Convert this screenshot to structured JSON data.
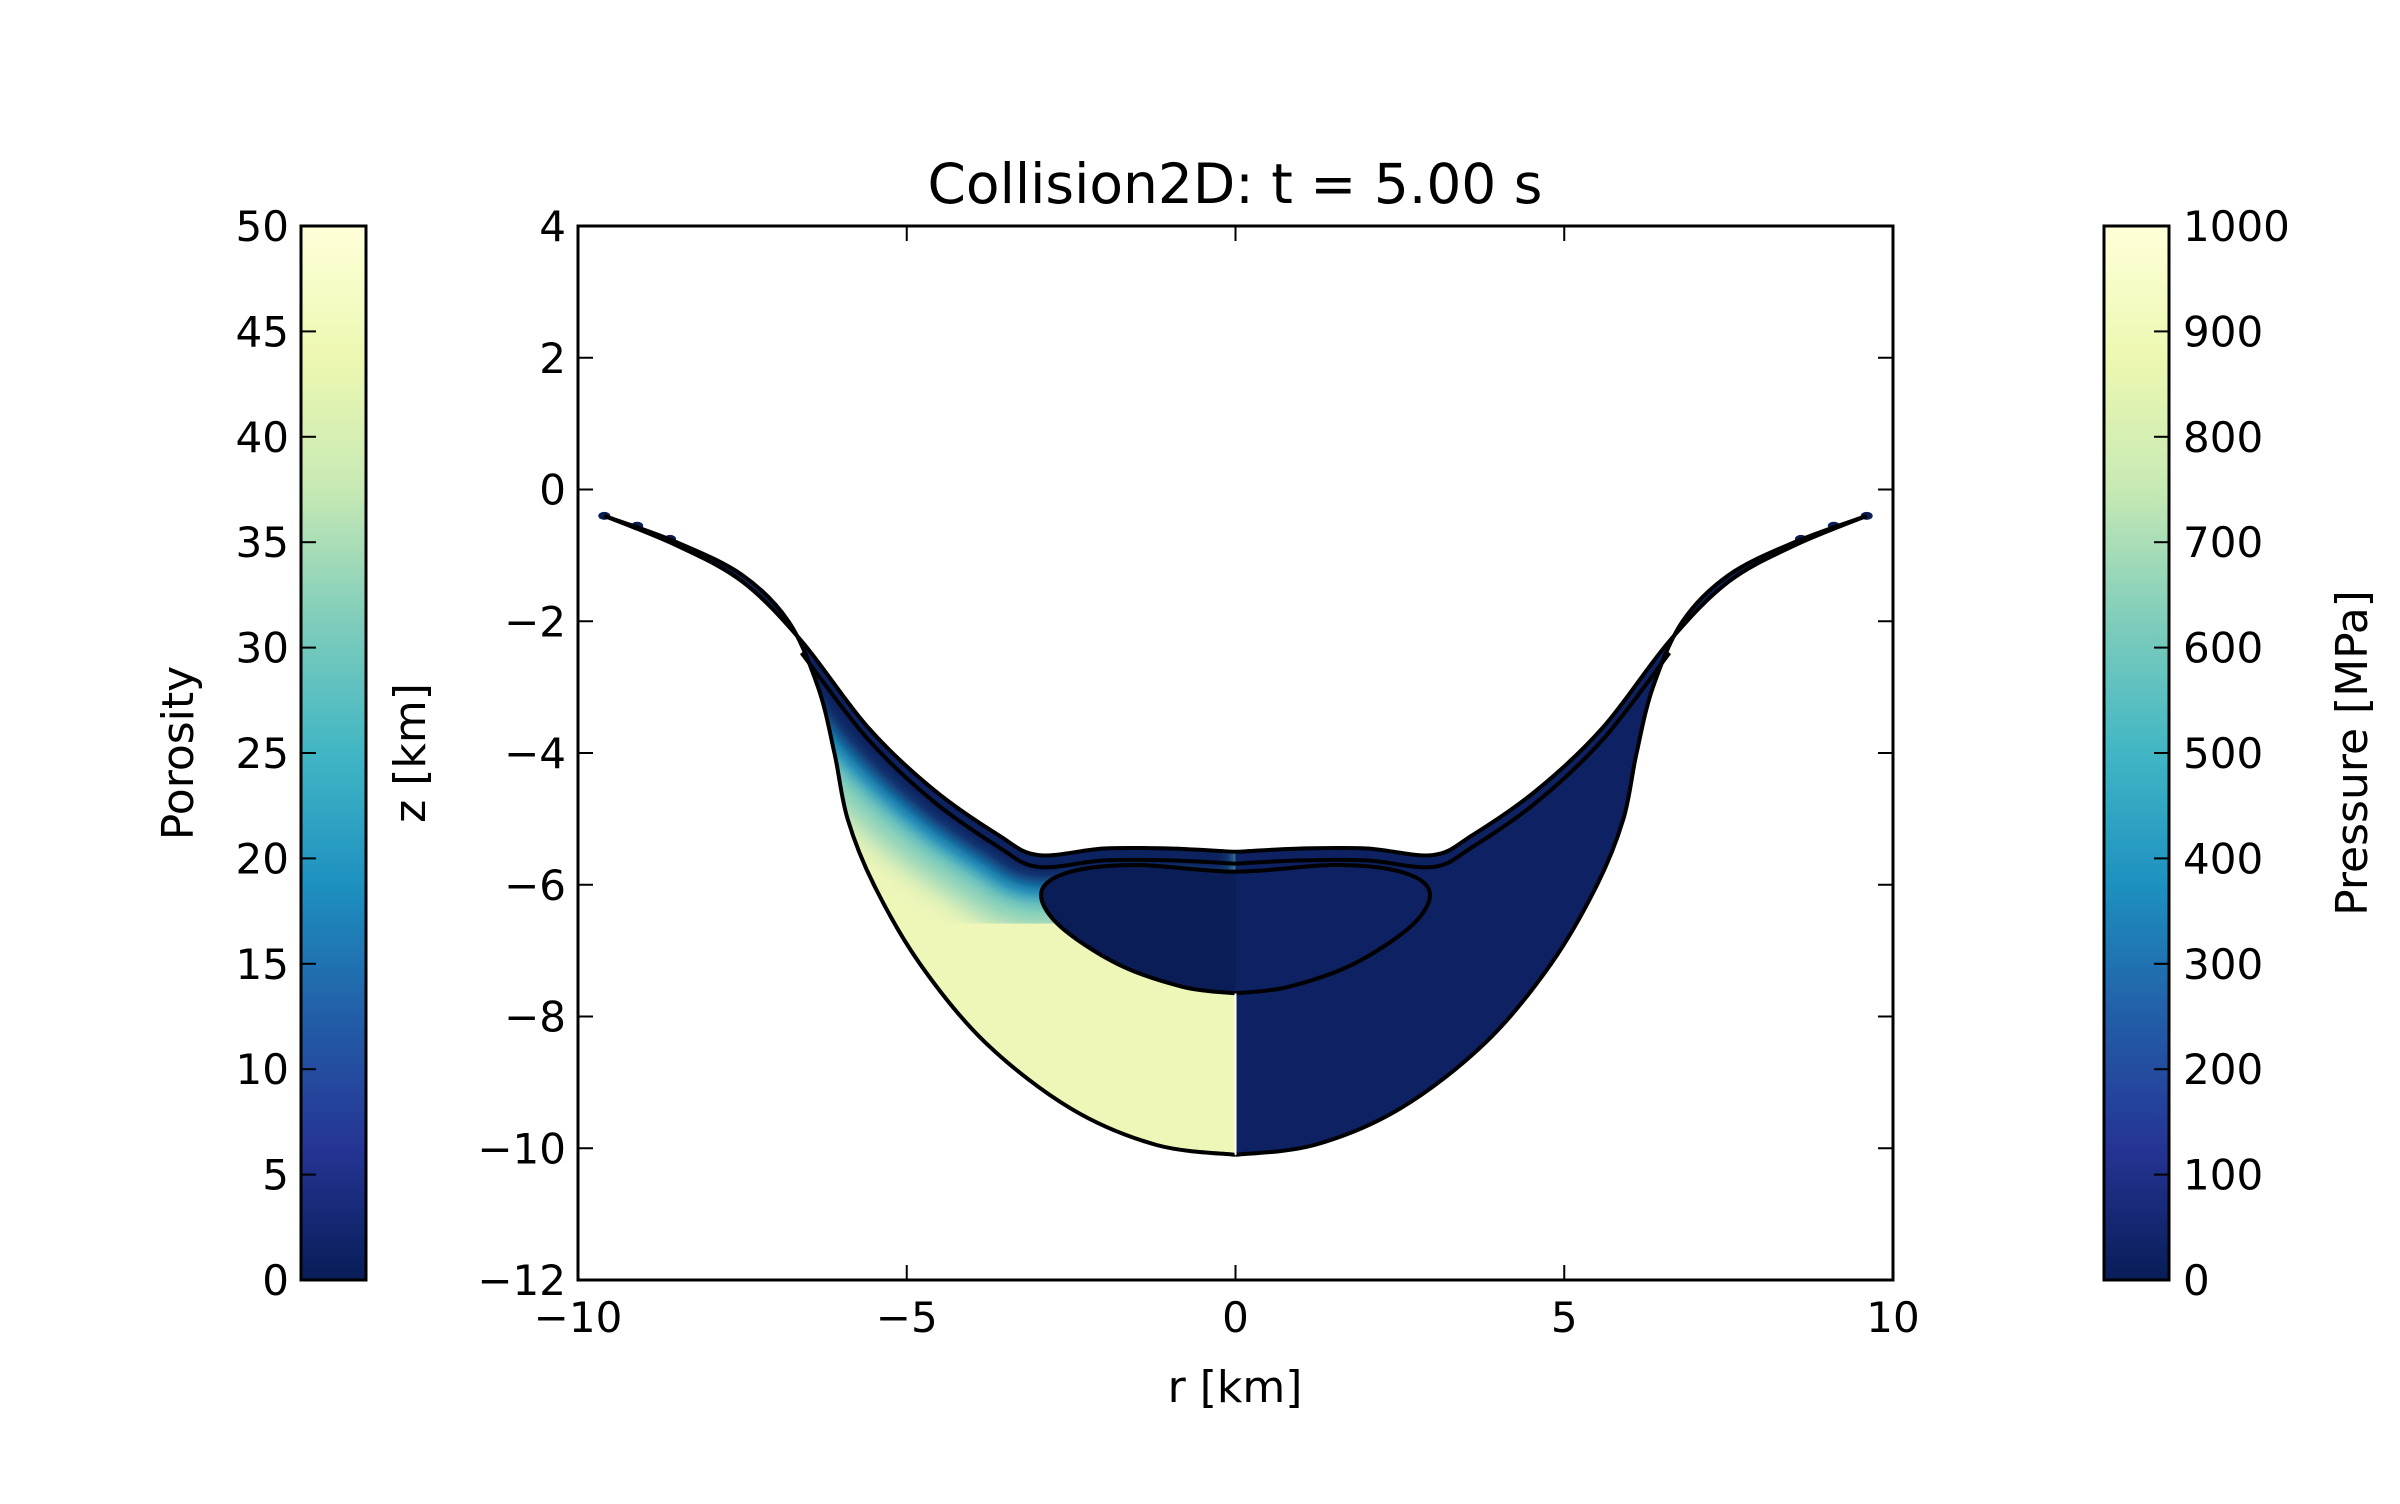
{
  "chart_data": {
    "type": "heatmap",
    "title": "Collision2D: t =  5.00 s",
    "xlabel": "r [km]",
    "ylabel": "z [km]",
    "xlim": [
      -10,
      10
    ],
    "ylim": [
      -12,
      4
    ],
    "xticks": [
      -10,
      -5,
      0,
      5,
      10
    ],
    "xtick_labels": [
      "−10",
      "−5",
      "0",
      "5",
      "10"
    ],
    "yticks": [
      4,
      2,
      0,
      -2,
      -4,
      -6,
      -8,
      -10,
      -12
    ],
    "ytick_labels": [
      "4",
      "2",
      "0",
      "−2",
      "−4",
      "−6",
      "−8",
      "−10",
      "−12"
    ],
    "grid": false,
    "left_field": "Porosity (r < 0)",
    "right_field": "Pressure (r > 0)",
    "colormap": [
      "#081d58",
      "#253494",
      "#225ea8",
      "#1d91c0",
      "#41b6c4",
      "#7fcdbb",
      "#c7e9b4",
      "#edf8b1",
      "#ffffd9"
    ],
    "colorbars": [
      {
        "label": "Porosity",
        "range": [
          0,
          50
        ],
        "ticks": [
          0,
          5,
          10,
          15,
          20,
          25,
          30,
          35,
          40,
          45,
          50
        ],
        "tick_labels": [
          "0",
          "5",
          "10",
          "15",
          "20",
          "25",
          "30",
          "35",
          "40",
          "45",
          "50"
        ],
        "position": "left"
      },
      {
        "label": "Pressure [MPa]",
        "range": [
          0,
          1000
        ],
        "ticks": [
          0,
          100,
          200,
          300,
          400,
          500,
          600,
          700,
          800,
          900,
          1000
        ],
        "tick_labels": [
          "0",
          "100",
          "200",
          "300",
          "400",
          "500",
          "600",
          "700",
          "800",
          "900",
          "1000"
        ],
        "position": "right"
      }
    ],
    "crater_outer_boundary": [
      [
        9.6,
        -0.4
      ],
      [
        8.5,
        -0.8
      ],
      [
        7.5,
        -1.3
      ],
      [
        6.8,
        -2.0
      ],
      [
        6.35,
        -3.0
      ],
      [
        6.1,
        -4.0
      ],
      [
        5.9,
        -5.0
      ],
      [
        5.5,
        -6.0
      ],
      [
        4.8,
        -7.2
      ],
      [
        3.8,
        -8.4
      ],
      [
        2.5,
        -9.4
      ],
      [
        1.2,
        -9.95
      ],
      [
        0,
        -10.1
      ]
    ],
    "crater_surface": [
      [
        9.6,
        -0.4
      ],
      [
        8.5,
        -0.85
      ],
      [
        7.5,
        -1.4
      ],
      [
        6.6,
        -2.3
      ],
      [
        5.6,
        -3.6
      ],
      [
        4.6,
        -4.55
      ],
      [
        3.6,
        -5.25
      ],
      [
        3.0,
        -5.55
      ],
      [
        2.0,
        -5.45
      ],
      [
        1.0,
        -5.45
      ],
      [
        0,
        -5.5
      ]
    ],
    "projectile_contour": [
      [
        0,
        -5.8
      ],
      [
        1.5,
        -5.7
      ],
      [
        2.5,
        -5.8
      ],
      [
        2.95,
        -6.1
      ],
      [
        2.7,
        -6.6
      ],
      [
        1.8,
        -7.2
      ],
      [
        0.8,
        -7.55
      ],
      [
        0,
        -7.65
      ]
    ]
  }
}
